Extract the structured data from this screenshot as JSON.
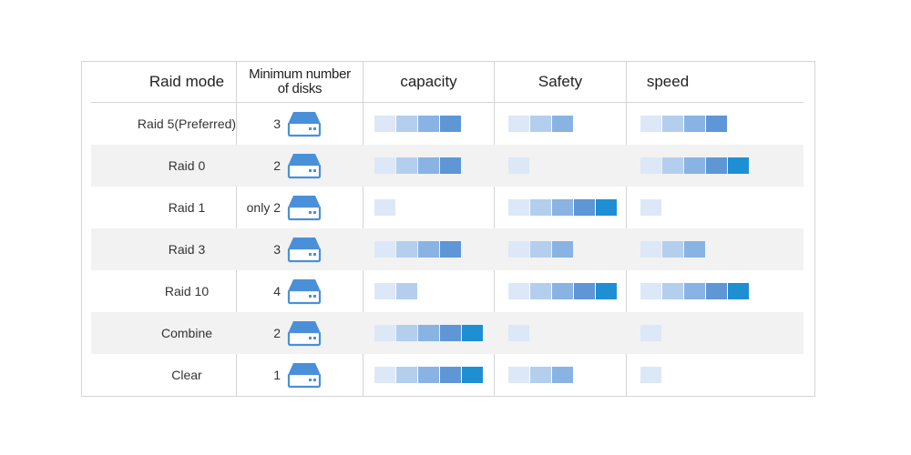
{
  "headers": {
    "mode": "Raid  mode",
    "disks_line1": "Minimum number",
    "disks_line2": "of disks",
    "capacity": "capacity",
    "safety": "Safety",
    "speed": "speed"
  },
  "colors": {
    "level_1": "#dce8f7",
    "level_2": "#b4cfee",
    "level_3": "#89b3e3",
    "level_4": "#5e96d6",
    "level_5": "#1f8fd4",
    "disk_icon": "#4a90d9",
    "row_shade": "#f2f2f2",
    "border": "#d4d4d4"
  },
  "icon": "disk-drive-icon",
  "chart_data": {
    "type": "table",
    "columns": [
      "Raid  mode",
      "Minimum number of disks",
      "capacity",
      "Safety",
      "speed"
    ],
    "scale_max": 5,
    "rows": [
      {
        "mode": "Raid 5(Preferred)",
        "min_disks": "3",
        "capacity": 4,
        "safety": 3,
        "speed": 4
      },
      {
        "mode": "Raid 0",
        "min_disks": "2",
        "capacity": 4,
        "safety": 1,
        "speed": 5
      },
      {
        "mode": "Raid 1",
        "min_disks": "only 2",
        "capacity": 1,
        "safety": 5,
        "speed": 1
      },
      {
        "mode": "Raid 3",
        "min_disks": "3",
        "capacity": 4,
        "safety": 3,
        "speed": 3
      },
      {
        "mode": "Raid 10",
        "min_disks": "4",
        "capacity": 2,
        "safety": 5,
        "speed": 5
      },
      {
        "mode": "Combine",
        "min_disks": "2",
        "capacity": 5,
        "safety": 1,
        "speed": 1
      },
      {
        "mode": "Clear",
        "min_disks": "1",
        "capacity": 5,
        "safety": 3,
        "speed": 1
      }
    ]
  }
}
